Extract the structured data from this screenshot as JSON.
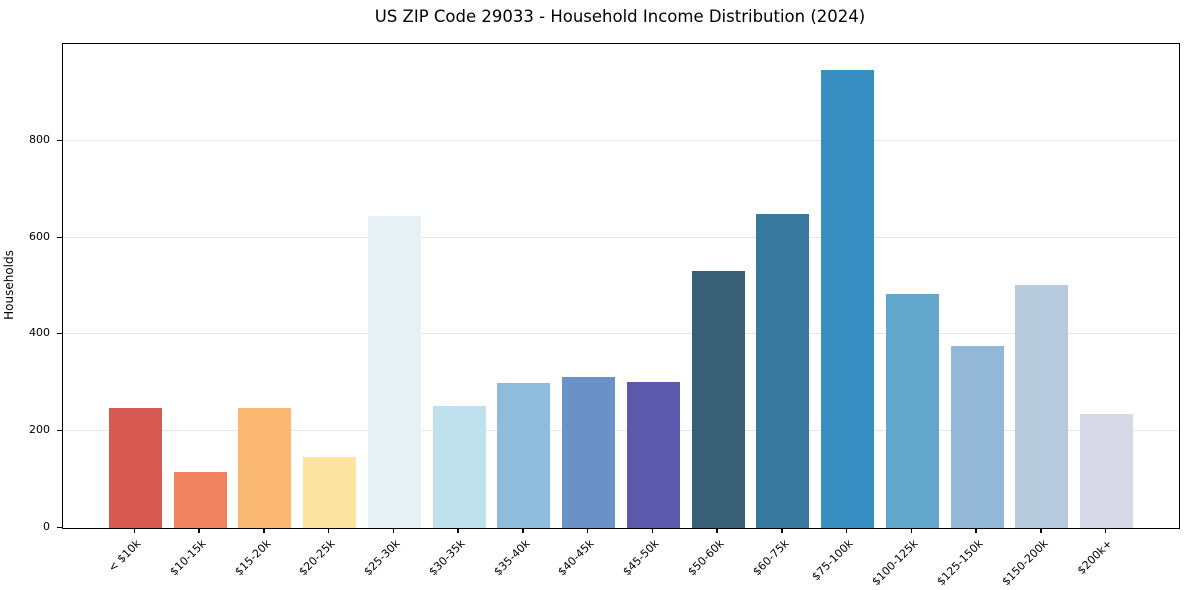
{
  "chart_data": {
    "type": "bar",
    "title": "US ZIP Code 29033 - Household Income Distribution (2024)",
    "xlabel": "",
    "ylabel": "Households",
    "categories": [
      "< $10k",
      "$10-15k",
      "$15-20k",
      "$20-25k",
      "$25-30k",
      "$30-35k",
      "$35-40k",
      "$40-45k",
      "$45-50k",
      "$50-60k",
      "$60-75k",
      "$75-100k",
      "$100-125k",
      "$125-150k",
      "$150-200k",
      "$200k+"
    ],
    "values": [
      248,
      116,
      248,
      147,
      645,
      252,
      299,
      312,
      301,
      531,
      648,
      947,
      484,
      377,
      503,
      236
    ],
    "bar_colors": [
      "#d65a52",
      "#f0825f",
      "#fab873",
      "#fde5a1",
      "#e7f2f7",
      "#bfe1ee",
      "#90bcdc",
      "#6a92c6",
      "#5b59ac",
      "#375f76",
      "#36789e",
      "#388fc4",
      "#61a7cb",
      "#93b7d6",
      "#b8cade",
      "#d8d9e6"
    ],
    "ylim": [
      0,
      1000
    ],
    "yticks": [
      0,
      200,
      400,
      600,
      800
    ],
    "grid": "horizontal",
    "legend": "none"
  },
  "colors": {
    "spine": "#000000",
    "grid": "#e6e6e6",
    "background": "#ffffff",
    "text": "#000000"
  }
}
